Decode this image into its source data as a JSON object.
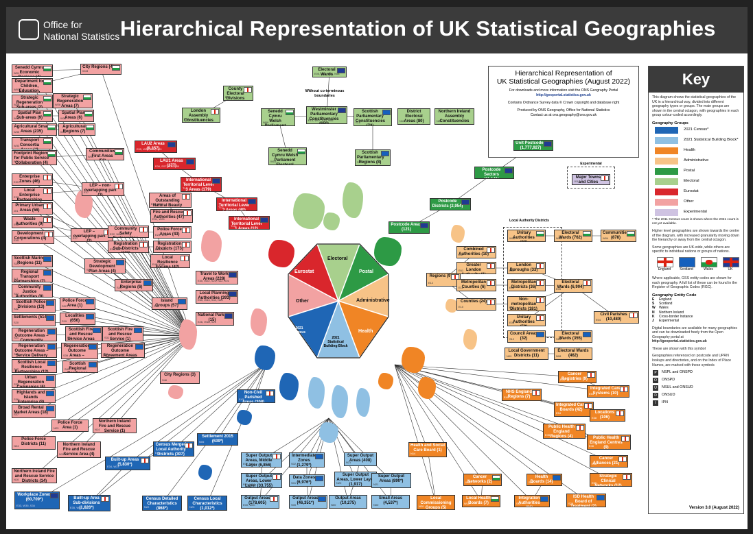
{
  "header": {
    "logo_line1": "Office for",
    "logo_line2": "National Statistics",
    "title": "Hierarchical Representation of UK Statistical Geographies"
  },
  "info": {
    "heading_line1": "Hierarchical Representation of",
    "heading_line2": "UK Statistical Geographies (August 2022)",
    "download_text": "For downloads and more information visit the ONS Geography Portal",
    "portal_url": "http://geoportal.statistics.gov.uk",
    "copyright": "Contains Ordnance Survey data © Crown copyright and database right",
    "produced_by": "Produced by ONS Geography, Office for National Statistics",
    "contact": "Contact us at ons.geography@ons.gov.uk"
  },
  "octagon": {
    "electoral": "Electoral",
    "postal": "Postal",
    "administrative": "Administrative",
    "health": "Health",
    "block_line1": "2021",
    "block_line2": "Statistical",
    "block_line3": "Building Block",
    "census_line1": "2021",
    "census_line2": "Census",
    "other": "Other",
    "eurostat": "Eurostat"
  },
  "labels": {
    "no_coterminous": "Without co-terminous boundaries",
    "experimental": "Experimental",
    "la_districts": "Local Authority Districts"
  },
  "colors": {
    "census": "#1f66b5",
    "block": "#8fc0e3",
    "health": "#f08525",
    "administrative": "#f7c387",
    "postal": "#2d9a45",
    "electoral": "#a8d08d",
    "eurostat": "#d9262c",
    "other": "#f2a2a2",
    "experimental": "#cfc3e2"
  },
  "boxes": {
    "ewards": {
      "label": "Electoral Wards (8,483)",
      "code": "E05, W05, S13, N08"
    },
    "ced": {
      "label": "County Electoral Divisions (1,575)",
      "code": "E58"
    },
    "lac": {
      "label": "London Assembly Constituencies (14)",
      "code": "E32"
    },
    "swpc": {
      "label": "Senedd Cymru Welsh Parliament Constituencies (40)",
      "code": "W09"
    },
    "wpc": {
      "label": "Westminster Parliamentary Constituencies (650)",
      "code": "E14, W07, S14, N06"
    },
    "spc": {
      "label": "Scottish Parliamentary Constituencies (73)",
      "code": "S16"
    },
    "dea": {
      "label": "District Electoral Areas (80)",
      "code": "N10"
    },
    "niac": {
      "label": "Northern Ireland Assembly Constituencies (18)",
      "code": "N06"
    },
    "swper": {
      "label": "Senedd Cymru Welsh Parliament Electoral Regions (5)",
      "code": "W10"
    },
    "sper": {
      "label": "Scottish Parliamentary Regions (8)",
      "code": "S17"
    },
    "upc": {
      "label": "Unit Postcodes (1,777,927)",
      "code": ""
    },
    "pcs": {
      "label": "Postcode Sectors (11,141)",
      "code": ""
    },
    "pcd": {
      "label": "Postcode Districts (2,954)",
      "code": ""
    },
    "pca": {
      "label": "Postcode Areas (121)",
      "code": ""
    },
    "mtc": {
      "label": "Major Towns and Cities (112)",
      "code": "J01"
    },
    "sc_econ": {
      "label": "Senedd Cymru Economic Regions (4)",
      "code": "W01"
    },
    "dfc": {
      "label": "Department for Children, Education, Lifelong Learning and Skills (4)",
      "code": "W03"
    },
    "city_reg": {
      "label": "City Regions (4)",
      "code": "W43"
    },
    "srsa": {
      "label": "Strategic Regeneration Sub-areas (2)",
      "code": "W29"
    },
    "sra": {
      "label": "Strategic Regeneration Areas (7)",
      "code": "W28"
    },
    "spsa": {
      "label": "Spatial Plan Sub-areas (9)",
      "code": "W31"
    },
    "spa": {
      "label": "Spatial Plan Areas (6)",
      "code": "W30"
    },
    "asa": {
      "label": "Agricultural Small Areas (235)",
      "code": "W35"
    },
    "agr": {
      "label": "Agricultural Regions (7)",
      "code": "W36"
    },
    "tca": {
      "label": "Transport Consortia Areas (4)",
      "code": "W33"
    },
    "frpc": {
      "label": "Footprint Regions for Public Service Collaboration (4)",
      "code": "W37"
    },
    "cfa": {
      "label": "Communities First Areas (52)",
      "code": "W05"
    },
    "lau2": {
      "label": "LAU2 Areas (9,357)",
      "code": "E05, W05, S30, N09"
    },
    "lau1": {
      "label": "LAU1 Areas (377)",
      "code": "E06, E07, E08, E09"
    },
    "itl3": {
      "label": "International Territorial Level 3 Areas (179)",
      "code": "TLC"
    },
    "itl2": {
      "label": "International Territorial Level 2 Areas (40)",
      "code": "TLC"
    },
    "itl1": {
      "label": "International Territorial Level 1 Areas (12)",
      "code": "TLC"
    },
    "ez": {
      "label": "Enterprise Zones (46)",
      "code": "E39"
    },
    "lep_no": {
      "label": "LEP – non-overlapping part (3)",
      "code": "E37"
    },
    "lep": {
      "label": "Local Enterprise Partnerships (38)",
      "code": "E37"
    },
    "pua": {
      "label": "Primary Urban Areas (56)",
      "code": "J01"
    },
    "waste": {
      "label": "Waste Authorities (9)",
      "code": "E38"
    },
    "lep_o": {
      "label": "LEP – overlapping part (2)",
      "code": "E37"
    },
    "dc": {
      "label": "Development Corporations (4)",
      "code": "E45"
    },
    "aonb": {
      "label": "Areas of Outstanding Natural Beauty (38)",
      "code": "E45, W20"
    },
    "fra": {
      "label": "Fire and Rescue Authorities (47)",
      "code": "E31, W25"
    },
    "csp": {
      "label": "Community Safety Partnerships (314)",
      "code": "E22, W22"
    },
    "pfa": {
      "label": "Police Force Areas (43)",
      "code": "E23, W15"
    },
    "rsd": {
      "label": "Registration Sub-Districts (173)",
      "code": "E30, W21"
    },
    "rd": {
      "label": "Registration Districts (173)",
      "code": "E28, W20"
    },
    "lrf": {
      "label": "Local Resilience Forums (42)",
      "code": "E48, W48"
    },
    "smr": {
      "label": "Scottish Marine Regions (11)",
      "code": "S34"
    },
    "rtp": {
      "label": "Regional Transport Partnerships (7)",
      "code": "S11"
    },
    "sdpa": {
      "label": "Strategic Development Plan Areas (4)",
      "code": "S10"
    },
    "cja": {
      "label": "Community Justice Authorities (8)",
      "code": "S32"
    },
    "er": {
      "label": "Enterprise Regions (6)",
      "code": "S44"
    },
    "spd": {
      "label": "Scottish Police Divisions (13)",
      "code": "S32"
    },
    "pfa_s": {
      "label": "Police Force Area (1)",
      "code": "S32"
    },
    "islands": {
      "label": "Island Groups (57)",
      "code": "S33"
    },
    "settle": {
      "label": "Settlements (514)",
      "code": "S20"
    },
    "local": {
      "label": "Localities (656)",
      "code": "S19"
    },
    "sfrsa": {
      "label": "Scottish Fire and Rescue Service Areas (3)",
      "code": "S31"
    },
    "sfrs": {
      "label": "Scottish Fire and Rescue Service (1)",
      "code": "S31"
    },
    "rocpd": {
      "label": "Regeneration Outcome Areas – Community Planning Partnership (32)",
      "code": "S41"
    },
    "rocd": {
      "label": "Regeneration Outcome Areas – Service Delivery (160)",
      "code": "S40"
    },
    "rdaa": {
      "label": "Regeneration Outcome Areas – Service Delivery Agreement Areas (6)",
      "code": "S39"
    },
    "rdas": {
      "label": "Regeneration Outcome Agreement Areas – Scotland (1)",
      "code": "S38"
    },
    "slrp": {
      "label": "Scottish Local Resilience Partnerships (12)",
      "code": "S42"
    },
    "srrp": {
      "label": "Scottish Regional Resilience Partnerships (3)",
      "code": "S43"
    },
    "urc": {
      "label": "Urban Regeneration Companies (6)",
      "code": "S35"
    },
    "hie": {
      "label": "Highlands and Islands Enterprise (8)",
      "code": "S36"
    },
    "brma": {
      "label": "Broad Rental Market Areas (18)",
      "code": "S37"
    },
    "ttwa": {
      "label": "Travel to Work Areas (228)",
      "code": "E30, W22, S22, N12, K01"
    },
    "lpa": {
      "label": "Local Planning Authorities (393)",
      "code": "E60, W43, S44, N13"
    },
    "np": {
      "label": "National Parks (15)",
      "code": "E26, W18, S21"
    },
    "cr_ni": {
      "label": "City Regions (3)",
      "code": "S46"
    },
    "pfa_n": {
      "label": "Police Force Area (1)",
      "code": "N23"
    },
    "nifrs": {
      "label": "Northern Ireland Fire and Rescue Service (1)",
      "code": "N14"
    },
    "pfd": {
      "label": "Police Force Districts (11)",
      "code": "N24"
    },
    "nifrsa": {
      "label": "Northern Ireland Fire and Rescue Service Area (4)",
      "code": "N15"
    },
    "nifrsd": {
      "label": "Northern Ireland Fire and Rescue Service Districts (14)",
      "code": "N16"
    },
    "lad": {
      "label": "Local Authority Districts",
      "code": ""
    },
    "ua1": {
      "label": "Unitary Authorities (22)",
      "code": "W06"
    },
    "ew762": {
      "label": "Electoral Wards (762)",
      "code": "W05"
    },
    "comm": {
      "label": "Communities (878)",
      "code": "W04"
    },
    "ca_reg": {
      "label": "Regions (9)",
      "code": "E12"
    },
    "ca": {
      "label": "Combined Authorities (10)",
      "code": "E47"
    },
    "gla": {
      "label": "Greater London Authority (1)",
      "code": "E61"
    },
    "lb": {
      "label": "London Boroughs (33)",
      "code": "E09"
    },
    "mc": {
      "label": "Metropolitan Counties (6)",
      "code": "E11"
    },
    "md": {
      "label": "Metropolitan Districts (36)",
      "code": "E08"
    },
    "ew6904": {
      "label": "Electoral Wards (6,904)",
      "code": "E05"
    },
    "counties": {
      "label": "Counties (24)",
      "code": "E10"
    },
    "nmd": {
      "label": "Non-metropolitan Districts (181)",
      "code": "E07"
    },
    "ua2": {
      "label": "Unitary Authorities (59)",
      "code": "E06"
    },
    "cp": {
      "label": "Civil Parishes (10,480)",
      "code": "E04"
    },
    "ca32": {
      "label": "Council Areas (32)",
      "code": "S12"
    },
    "ew355": {
      "label": "Electoral Wards (355)",
      "code": "S13"
    },
    "lgd": {
      "label": "Local Government Districts (11)",
      "code": "N09"
    },
    "ew462": {
      "label": "Electoral Wards (462)",
      "code": "N08"
    },
    "cancreg": {
      "label": "Cancer Registries (9)",
      "code": "E34"
    },
    "ics": {
      "label": "Integrated Care Systems (10)",
      "code": "E54"
    },
    "nhser": {
      "label": "NHS England Regions (7)",
      "code": "E40"
    },
    "icb": {
      "label": "Integrated Care Boards (42)",
      "code": "E54"
    },
    "loc": {
      "label": "Locations (106)",
      "code": "E38"
    },
    "phec": {
      "label": "Public Health England Regions (4)",
      "code": "E45"
    },
    "phecen": {
      "label": "Public Health England Centres (9)",
      "code": "E46"
    },
    "canall": {
      "label": "Cancer Alliances (21)",
      "code": "E56"
    },
    "scn": {
      "label": "Strategic Clinical Networks (12)",
      "code": "E55"
    },
    "hsc": {
      "label": "Health and Social Care Board (1)",
      "code": "N14"
    },
    "cn": {
      "label": "Cancer Networks (2)",
      "code": "W11"
    },
    "hb": {
      "label": "Health Boards (14)",
      "code": "S08"
    },
    "lcg": {
      "label": "Local Commissioning Groups (5)",
      "code": "N20"
    },
    "lhb": {
      "label": "Local Health Boards (7)",
      "code": "W11"
    },
    "ia": {
      "label": "Integration Authorities (31)",
      "code": "S37"
    },
    "isd": {
      "label": "ISD Health Board of Treatment (2)",
      "code": "S28"
    },
    "ncpa": {
      "label": "Non-Civil Parished Areas (208)",
      "code": "E43"
    },
    "settle15": {
      "label": "Settlement 2015 (639*)",
      "code": "N05"
    },
    "cmlad": {
      "label": "Census Merged Local Authority Districts (307)",
      "code": "E41"
    },
    "bua": {
      "label": "Built-up Areas (5,830*)",
      "code": "E34, W37"
    },
    "wz": {
      "label": "Workplace Zones (60,709*)",
      "code": "E33, W35, S34"
    },
    "buasd": {
      "label": "Built-up Area Sub-divisions (1,826*)",
      "code": "E35, W38"
    },
    "cdc": {
      "label": "Census Detailed Characteristics (868*)",
      "code": "N22"
    },
    "clc": {
      "label": "Census Local Characteristics (1,012*)",
      "code": "N23"
    },
    "msoa": {
      "label": "Super Output Areas, Middle Layer (6,856)",
      "code": "E02, W02"
    },
    "iz": {
      "label": "Intermediate Zones (1,279*)",
      "code": "S02"
    },
    "soa_ni": {
      "label": "Super Output Areas (408)",
      "code": "N21"
    },
    "lsoa": {
      "label": "Super Output Areas, Lower Layer (33,755)",
      "code": "E01, W01"
    },
    "dz": {
      "label": "Data Zones (6,976*)",
      "code": "S01"
    },
    "lsoa_ni": {
      "label": "Super Output Areas, Lower Layer (1,917)",
      "code": "N20"
    },
    "soa890": {
      "label": "Super Output Areas (890*)",
      "code": "N21"
    },
    "oa1": {
      "label": "Output Areas (178,605)",
      "code": "E00, W00"
    },
    "oa2": {
      "label": "Output Areas (46,351*)",
      "code": "S00"
    },
    "oa3": {
      "label": "Output Areas (10,275)",
      "code": "N00"
    },
    "sa": {
      "label": "Small Areas (4,537*)",
      "code": "N00"
    }
  },
  "key": {
    "title": "Key",
    "intro": "This diagram shows the statistical geographies of the UK in a hierarchical way, divided into different geography types or groups. The main groups are shown in the central octagon, with geographies in each group colour-coded accordingly.",
    "groups_heading": "Geography Groups",
    "groups": [
      {
        "name": "2021 Census*",
        "color": "#1f66b5"
      },
      {
        "name": "2021 Statistical Building Block*",
        "color": "#8fc0e3"
      },
      {
        "name": "Health",
        "color": "#f08525"
      },
      {
        "name": "Administrative",
        "color": "#f7c387"
      },
      {
        "name": "Postal",
        "color": "#2d9a45"
      },
      {
        "name": "Electoral",
        "color": "#a8d08d"
      },
      {
        "name": "Eurostat",
        "color": "#d9262c"
      },
      {
        "name": "Other",
        "color": "#f2a2a2"
      },
      {
        "name": "Experimental",
        "color": "#cfc3e2"
      }
    ],
    "census_note": "* The 2011 Census count is shown where the 2021 count is not yet available.",
    "para2": "Higher level geographies are shown towards the centre of the diagram, with increased granularity moving down the hierarchy or away from the central octagon.",
    "para3": "Some geographies are UK-wide, while others are specific to individual nations or groups of nations.",
    "flags": [
      "England",
      "Scotland",
      "Wales",
      "UK"
    ],
    "para4": "Where applicable, GSS entity codes are shown for each geography. A full list of these can be found in the Register of Geographic Codes (RGC).",
    "codes_heading": "Geography Entity Code",
    "codes": [
      {
        "k": "E",
        "v": "England"
      },
      {
        "k": "S",
        "v": "Scotland"
      },
      {
        "k": "W",
        "v": "Wales"
      },
      {
        "k": "N",
        "v": "Northern Ireland"
      },
      {
        "k": "K",
        "v": "Cross-border Instance"
      },
      {
        "k": "J",
        "v": "Experimental"
      }
    ],
    "para5": "Digital boundaries are available for many geographies and can be downloaded freely from the Open Geography portal at",
    "portal": "http://geoportal.statistics.gov.uk",
    "symbol_note": "These are shown with this symbol",
    "para6": "Geographies referenced on postcode and UPRN lookups and directories, and on the Index of Place Names, are marked with these symbols",
    "lookups": [
      {
        "k": "P",
        "v": "NSPL and ONSPD"
      },
      {
        "k": "O",
        "v": "ONSPD"
      },
      {
        "k": "U",
        "v": "NSUL and ONSUD"
      },
      {
        "k": "D",
        "v": "ONSUD"
      },
      {
        "k": "I",
        "v": "IPN"
      }
    ],
    "version": "Version 3.0 (August 2022)"
  }
}
